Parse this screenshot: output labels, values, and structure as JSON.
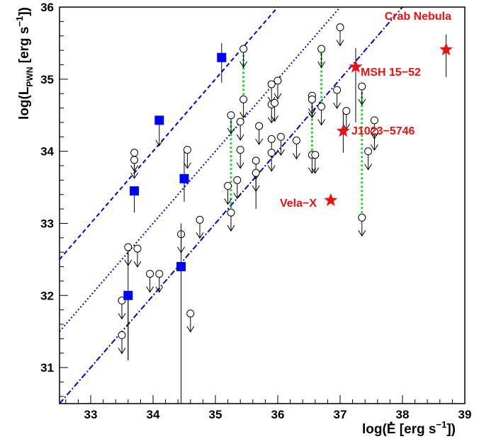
{
  "chart_data": {
    "type": "scatter",
    "xlabel": {
      "pre": "log(",
      "accent": "E",
      "mid": " [erg s",
      "sup": "−1",
      "post": "])"
    },
    "ylabel": {
      "pre": "log(L",
      "sub": "PWN",
      "mid": " [erg s",
      "sup": "−1",
      "post": "])"
    },
    "xlim": [
      32.5,
      39
    ],
    "ylim": [
      30.5,
      36
    ],
    "xticks": [
      "33",
      "34",
      "35",
      "36",
      "37",
      "38",
      "39"
    ],
    "yticks": [
      "31",
      "32",
      "33",
      "34",
      "35",
      "36"
    ],
    "grid": false,
    "colors": {
      "detections": "#0000ff",
      "named_pwn": "#ee1111",
      "upper_limits": "#000000",
      "paired_links": "#33cc33",
      "relation_lines": "#0000cc"
    },
    "relation_lines": [
      {
        "style": "dashed",
        "points": [
          [
            32.5,
            32.5
          ],
          [
            36.0,
            36.0
          ]
        ]
      },
      {
        "style": "dotted",
        "points": [
          [
            32.5,
            31.5
          ],
          [
            37.0,
            36.0
          ]
        ]
      },
      {
        "style": "dashdot",
        "points": [
          [
            32.5,
            30.5
          ],
          [
            38.0,
            36.0
          ]
        ]
      }
    ],
    "detections_blue": [
      {
        "x": 33.6,
        "y": 32.0,
        "lo": 31.1,
        "hi": 32.0
      },
      {
        "x": 33.7,
        "y": 33.45,
        "lo": 33.15,
        "hi": 33.45
      },
      {
        "x": 34.1,
        "y": 34.43,
        "lo": 34.43,
        "hi": 34.43
      },
      {
        "x": 34.5,
        "y": 33.62,
        "lo": 33.3,
        "hi": 34.0
      },
      {
        "x": 34.45,
        "y": 32.4,
        "lo": 30.5,
        "hi": 33.0
      },
      {
        "x": 35.1,
        "y": 35.3,
        "lo": 34.95,
        "hi": 35.5
      }
    ],
    "upper_limits": [
      {
        "x": 33.5,
        "y": 31.45
      },
      {
        "x": 33.5,
        "y": 31.93
      },
      {
        "x": 33.6,
        "y": 32.67,
        "stem_to": 31.1
      },
      {
        "x": 33.75,
        "y": 32.65
      },
      {
        "x": 33.7,
        "y": 33.98
      },
      {
        "x": 33.7,
        "y": 33.88
      },
      {
        "x": 33.95,
        "y": 32.3
      },
      {
        "x": 34.1,
        "y": 32.3
      },
      {
        "x": 34.55,
        "y": 34.02
      },
      {
        "x": 34.45,
        "y": 32.85
      },
      {
        "x": 34.6,
        "y": 31.75
      },
      {
        "x": 34.75,
        "y": 33.05
      },
      {
        "x": 35.2,
        "y": 33.52
      },
      {
        "x": 35.25,
        "y": 34.5
      },
      {
        "x": 35.25,
        "y": 33.15
      },
      {
        "x": 35.35,
        "y": 33.6
      },
      {
        "x": 35.4,
        "y": 34.41
      },
      {
        "x": 35.4,
        "y": 34.02
      },
      {
        "x": 35.45,
        "y": 35.42
      },
      {
        "x": 35.45,
        "y": 34.72
      },
      {
        "x": 35.65,
        "y": 33.87
      },
      {
        "x": 35.65,
        "y": 33.7,
        "stem_to": 33.2
      },
      {
        "x": 35.7,
        "y": 34.35
      },
      {
        "x": 35.9,
        "y": 34.93
      },
      {
        "x": 35.9,
        "y": 34.65
      },
      {
        "x": 35.9,
        "y": 34.17
      },
      {
        "x": 35.9,
        "y": 33.98
      },
      {
        "x": 35.95,
        "y": 34.67
      },
      {
        "x": 36.0,
        "y": 34.98
      },
      {
        "x": 36.05,
        "y": 34.2
      },
      {
        "x": 36.3,
        "y": 34.15
      },
      {
        "x": 36.55,
        "y": 34.77
      },
      {
        "x": 36.55,
        "y": 34.72
      },
      {
        "x": 36.55,
        "y": 33.95
      },
      {
        "x": 36.6,
        "y": 33.95
      },
      {
        "x": 36.7,
        "y": 35.42
      },
      {
        "x": 36.7,
        "y": 34.62
      },
      {
        "x": 37.0,
        "y": 35.72
      },
      {
        "x": 37.1,
        "y": 34.56
      },
      {
        "x": 37.35,
        "y": 34.9
      },
      {
        "x": 37.35,
        "y": 33.08
      },
      {
        "x": 37.45,
        "y": 34.0
      },
      {
        "x": 37.55,
        "y": 34.43
      },
      {
        "x": 37.55,
        "y": 34.27
      },
      {
        "x": 36.95,
        "y": 34.85
      }
    ],
    "paired_links": [
      {
        "x": 35.25,
        "lo": 33.15,
        "hi": 34.5
      },
      {
        "x": 35.45,
        "lo": 34.72,
        "hi": 35.42
      },
      {
        "x": 36.55,
        "lo": 33.95,
        "hi": 34.77
      },
      {
        "x": 36.7,
        "lo": 34.62,
        "hi": 35.42
      },
      {
        "x": 37.35,
        "lo": 33.08,
        "hi": 34.9
      }
    ],
    "named_pwn": [
      {
        "name": "Crab Nebula",
        "x": 38.7,
        "y": 35.41,
        "lo": 35.03,
        "hi": 35.62
      },
      {
        "name": "MSH 15−52",
        "x": 37.25,
        "y": 35.17,
        "lo": 34.4,
        "hi": 35.43
      },
      {
        "name": "J1023−5746",
        "x": 37.05,
        "y": 34.28,
        "lo": 33.98,
        "hi": 34.55
      },
      {
        "name": "Vela−X",
        "x": 36.85,
        "y": 33.32
      }
    ]
  }
}
